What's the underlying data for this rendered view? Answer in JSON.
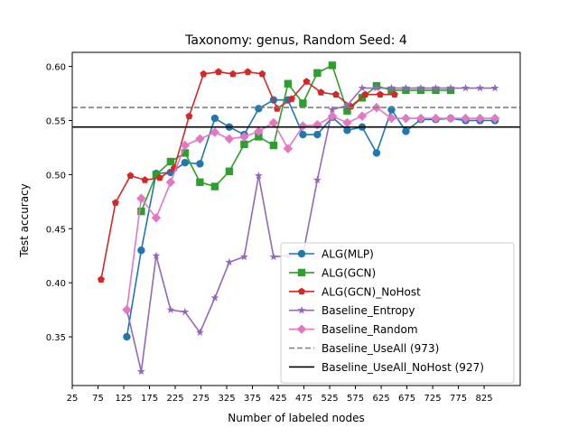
{
  "chart_data": {
    "type": "line",
    "title": "Taxonomy: genus, Random Seed: 4",
    "xlabel": "Number of labeled nodes",
    "ylabel": "Test accuracy",
    "xlim": [
      25,
      895
    ],
    "ylim": [
      0.305,
      0.613
    ],
    "xticks": [
      "25",
      "75",
      "125",
      "175",
      "225",
      "275",
      "325",
      "375",
      "425",
      "475",
      "525",
      "575",
      "625",
      "675",
      "725",
      "775",
      "825"
    ],
    "yticks": [
      "0.35",
      "0.40",
      "0.45",
      "0.50",
      "0.55",
      "0.60"
    ],
    "grid": false,
    "legend_position": "lower right",
    "series": [
      {
        "name": "ALG(MLP)",
        "color": "#1f77b4",
        "marker": "circle",
        "style": "solid",
        "x": [
          131,
          159,
          188,
          216,
          244,
          273,
          302,
          330,
          359,
          387,
          416,
          444,
          473,
          501,
          530,
          559,
          588,
          616,
          645,
          673,
          702,
          731,
          760,
          789,
          817,
          846
        ],
        "y": [
          0.35,
          0.43,
          0.501,
          0.502,
          0.511,
          0.51,
          0.552,
          0.544,
          0.537,
          0.561,
          0.569,
          0.569,
          0.537,
          0.537,
          0.553,
          0.541,
          0.544,
          0.52,
          0.56,
          0.54,
          0.551,
          0.551,
          0.552,
          0.55,
          0.55,
          0.55
        ]
      },
      {
        "name": "ALG(GCN)",
        "color": "#2ca02c",
        "marker": "square",
        "style": "solid",
        "x": [
          159,
          188,
          216,
          244,
          273,
          302,
          330,
          359,
          387,
          416,
          444,
          473,
          501,
          530,
          559,
          588,
          616,
          645,
          673,
          702,
          731,
          760
        ],
        "y": [
          0.466,
          0.5,
          0.512,
          0.52,
          0.493,
          0.489,
          0.503,
          0.528,
          0.535,
          0.527,
          0.584,
          0.566,
          0.594,
          0.601,
          0.559,
          0.571,
          0.582,
          0.578,
          0.578,
          0.578,
          0.578,
          0.578
        ]
      },
      {
        "name": "ALG(GCN)_NoHost",
        "color": "#d62728",
        "marker": "pentagon",
        "style": "solid",
        "x": [
          81,
          109,
          138,
          166,
          195,
          223,
          252,
          280,
          309,
          337,
          366,
          394,
          423,
          451,
          480,
          508,
          537,
          566,
          594,
          623,
          651
        ],
        "y": [
          0.403,
          0.474,
          0.499,
          0.495,
          0.497,
          0.506,
          0.554,
          0.593,
          0.595,
          0.593,
          0.595,
          0.593,
          0.561,
          0.57,
          0.586,
          0.576,
          0.574,
          0.563,
          0.574,
          0.574,
          0.574
        ]
      },
      {
        "name": "Baseline_Entropy",
        "color": "#9467bd",
        "marker": "star",
        "style": "solid",
        "x": [
          131,
          159,
          188,
          216,
          244,
          273,
          302,
          330,
          359,
          387,
          416,
          444,
          473,
          501,
          530,
          559,
          588,
          616,
          645,
          673,
          702,
          731,
          760,
          789,
          817,
          846
        ],
        "y": [
          0.375,
          0.318,
          0.425,
          0.375,
          0.373,
          0.354,
          0.386,
          0.419,
          0.424,
          0.499,
          0.424,
          0.425,
          0.426,
          0.495,
          0.56,
          0.564,
          0.58,
          0.58,
          0.58,
          0.58,
          0.58,
          0.58,
          0.58,
          0.58,
          0.58,
          0.58
        ]
      },
      {
        "name": "Baseline_Random",
        "color": "#e377c2",
        "marker": "diamond",
        "style": "solid",
        "x": [
          131,
          159,
          188,
          216,
          244,
          273,
          302,
          330,
          359,
          387,
          416,
          444,
          473,
          501,
          530,
          559,
          588,
          616,
          645,
          673,
          702,
          731,
          760,
          789,
          817,
          846
        ],
        "y": [
          0.375,
          0.478,
          0.46,
          0.493,
          0.527,
          0.533,
          0.539,
          0.533,
          0.535,
          0.54,
          0.548,
          0.524,
          0.545,
          0.546,
          0.554,
          0.548,
          0.554,
          0.562,
          0.552,
          0.552,
          0.552,
          0.552,
          0.552,
          0.552,
          0.552,
          0.552
        ]
      },
      {
        "name": "Baseline_UseAll (973)",
        "color": "#7f7f7f",
        "marker": "none",
        "style": "dashed",
        "hline": 0.562
      },
      {
        "name": "Baseline_UseAll_NoHost (927)",
        "color": "#000000",
        "marker": "none",
        "style": "solid",
        "hline": 0.544
      }
    ]
  }
}
